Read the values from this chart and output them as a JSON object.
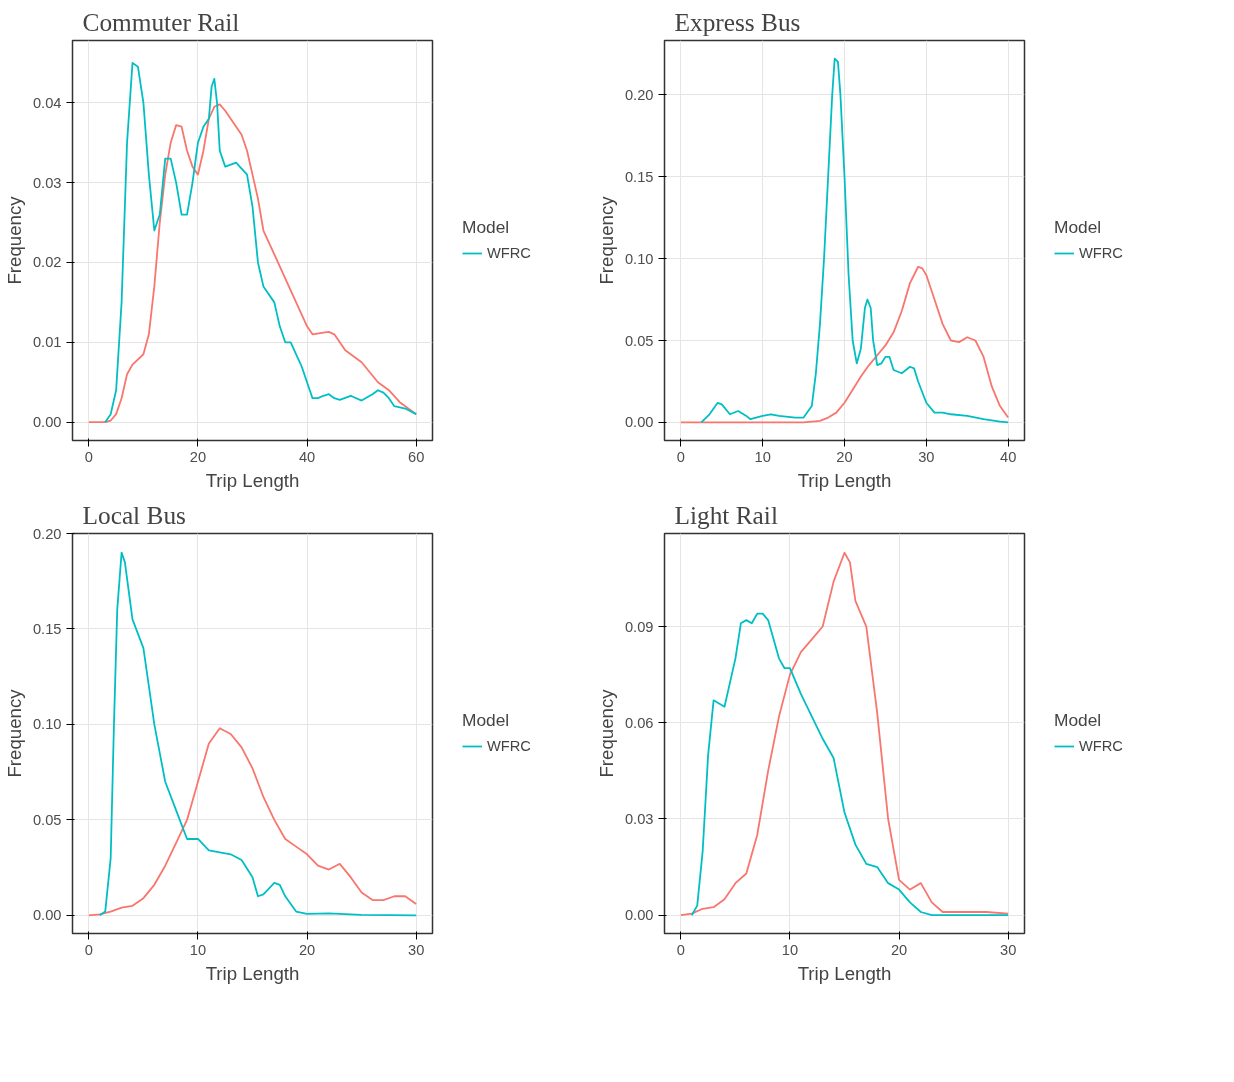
{
  "chart_data": [
    {
      "type": "line",
      "title": "Commuter Rail",
      "xlabel": "Trip Length",
      "ylabel": "Frequency",
      "legend_title": "Model",
      "legend": "right",
      "grid": true,
      "xlim": [
        -3,
        63
      ],
      "xticks": [
        0,
        20,
        40,
        60
      ],
      "ylim": [
        -0.0023,
        0.0478
      ],
      "yticks": [
        {
          "value": 0,
          "label": "0.00"
        },
        {
          "value": 0.01,
          "label": "0.01"
        },
        {
          "value": 0.02,
          "label": "0.02"
        },
        {
          "value": 0.03,
          "label": "0.03"
        },
        {
          "value": 0.04,
          "label": "0.04"
        }
      ],
      "series": [
        {
          "color": "#f8766d",
          "x": [
            0,
            3,
            4,
            5,
            6,
            7,
            8,
            10,
            11,
            12,
            13,
            14,
            15,
            16,
            17,
            18,
            19,
            20,
            21,
            22,
            23,
            24,
            25,
            26,
            28,
            29,
            30,
            31,
            32,
            34,
            36,
            37,
            38,
            40,
            41,
            43,
            44,
            45,
            47,
            50,
            53,
            55,
            57,
            60
          ],
          "values": [
            0,
            0,
            0.0002,
            0.001,
            0.003,
            0.006,
            0.0072,
            0.0085,
            0.011,
            0.017,
            0.025,
            0.031,
            0.035,
            0.0372,
            0.037,
            0.034,
            0.032,
            0.031,
            0.034,
            0.038,
            0.0395,
            0.0398,
            0.039,
            0.038,
            0.036,
            0.034,
            0.031,
            0.028,
            0.024,
            0.021,
            0.018,
            0.0165,
            0.015,
            0.012,
            0.011,
            0.0112,
            0.0113,
            0.011,
            0.009,
            0.0075,
            0.005,
            0.004,
            0.0025,
            0.001
          ]
        },
        {
          "name": "WFRC",
          "color": "#00bfc4",
          "x": [
            3,
            4,
            5,
            6,
            7,
            8,
            9,
            10,
            11,
            12,
            13,
            14,
            15,
            16,
            17,
            18,
            19,
            20,
            21,
            22,
            22.5,
            23,
            23.5,
            24,
            25,
            27,
            29,
            30,
            31,
            32,
            34,
            35,
            36,
            37,
            38,
            39,
            40,
            41,
            42,
            43,
            44,
            45,
            46,
            48,
            50,
            52,
            53,
            54,
            55,
            56,
            58,
            60
          ],
          "values": [
            0,
            0.001,
            0.004,
            0.015,
            0.035,
            0.045,
            0.0445,
            0.04,
            0.031,
            0.024,
            0.026,
            0.033,
            0.033,
            0.03,
            0.026,
            0.026,
            0.03,
            0.035,
            0.037,
            0.038,
            0.042,
            0.043,
            0.04,
            0.034,
            0.032,
            0.0325,
            0.031,
            0.027,
            0.02,
            0.017,
            0.015,
            0.012,
            0.01,
            0.01,
            0.0085,
            0.007,
            0.005,
            0.003,
            0.003,
            0.0033,
            0.0035,
            0.003,
            0.0028,
            0.0033,
            0.0027,
            0.0035,
            0.004,
            0.0037,
            0.003,
            0.002,
            0.0017,
            0.001
          ]
        }
      ]
    },
    {
      "type": "line",
      "title": "Express Bus",
      "xlabel": "Trip Length",
      "ylabel": "Frequency",
      "legend_title": "Model",
      "legend": "right",
      "grid": true,
      "xlim": [
        -2,
        42
      ],
      "xticks": [
        0,
        10,
        20,
        30,
        40
      ],
      "ylim": [
        -0.011,
        0.233
      ],
      "yticks": [
        {
          "value": 0,
          "label": "0.00"
        },
        {
          "value": 0.05,
          "label": "0.05"
        },
        {
          "value": 0.1,
          "label": "0.10"
        },
        {
          "value": 0.15,
          "label": "0.15"
        },
        {
          "value": 0.2,
          "label": "0.20"
        }
      ],
      "series": [
        {
          "color": "#f8766d",
          "x": [
            0,
            15,
            17,
            18,
            19,
            20,
            21,
            22,
            23,
            24,
            25,
            26,
            27,
            28,
            29,
            29.5,
            30,
            31,
            32,
            33,
            34,
            35,
            36,
            37,
            38,
            39,
            40
          ],
          "values": [
            0,
            0,
            0.001,
            0.003,
            0.006,
            0.012,
            0.02,
            0.028,
            0.035,
            0.041,
            0.047,
            0.055,
            0.068,
            0.085,
            0.095,
            0.094,
            0.09,
            0.075,
            0.06,
            0.05,
            0.049,
            0.052,
            0.05,
            0.04,
            0.022,
            0.01,
            0.003
          ]
        },
        {
          "name": "WFRC",
          "color": "#00bfc4",
          "x": [
            2.5,
            3.5,
            4.5,
            5,
            6,
            7,
            8,
            8.5,
            10,
            11,
            12,
            14,
            15,
            16,
            16.5,
            17,
            17.5,
            18,
            18.5,
            18.8,
            19.2,
            19.5,
            20,
            20.5,
            21,
            21.5,
            22,
            22.5,
            22.8,
            23.2,
            23.5,
            24,
            24.5,
            25,
            25.5,
            26,
            27,
            28,
            28.5,
            29,
            30,
            31,
            32,
            33,
            35,
            37,
            39,
            40
          ],
          "values": [
            0,
            0.005,
            0.012,
            0.011,
            0.005,
            0.007,
            0.004,
            0.002,
            0.004,
            0.005,
            0.004,
            0.003,
            0.003,
            0.01,
            0.03,
            0.06,
            0.1,
            0.15,
            0.2,
            0.222,
            0.22,
            0.2,
            0.15,
            0.09,
            0.05,
            0.036,
            0.045,
            0.07,
            0.075,
            0.07,
            0.05,
            0.035,
            0.036,
            0.04,
            0.04,
            0.032,
            0.03,
            0.034,
            0.033,
            0.025,
            0.012,
            0.006,
            0.006,
            0.005,
            0.004,
            0.002,
            0.0005,
            0
          ]
        }
      ]
    },
    {
      "type": "line",
      "title": "Local Bus",
      "xlabel": "Trip Length",
      "ylabel": "Frequency",
      "legend_title": "Model",
      "legend": "right",
      "grid": true,
      "xlim": [
        -1.5,
        31.5
      ],
      "xticks": [
        0,
        10,
        20,
        30
      ],
      "ylim": [
        -0.0095,
        0.2
      ],
      "yticks": [
        {
          "value": 0,
          "label": "0.00"
        },
        {
          "value": 0.05,
          "label": "0.05"
        },
        {
          "value": 0.1,
          "label": "0.10"
        },
        {
          "value": 0.15,
          "label": "0.15"
        },
        {
          "value": 0.2,
          "label": "0.20"
        }
      ],
      "series": [
        {
          "color": "#f8766d",
          "x": [
            0,
            1,
            2,
            3,
            4,
            5,
            6,
            7,
            8,
            9,
            10,
            11,
            12,
            13,
            14,
            15,
            16,
            17,
            18,
            19,
            20,
            21,
            22,
            23,
            24,
            25,
            26,
            27,
            28,
            29,
            30
          ],
          "values": [
            0,
            0.0005,
            0.002,
            0.004,
            0.005,
            0.009,
            0.016,
            0.026,
            0.038,
            0.05,
            0.07,
            0.09,
            0.098,
            0.095,
            0.088,
            0.077,
            0.062,
            0.05,
            0.04,
            0.036,
            0.032,
            0.026,
            0.024,
            0.027,
            0.02,
            0.012,
            0.008,
            0.008,
            0.01,
            0.01,
            0.006
          ]
        },
        {
          "name": "WFRC",
          "color": "#00bfc4",
          "x": [
            1,
            1.5,
            2,
            2.3,
            2.6,
            3,
            3.3,
            4,
            5,
            5.5,
            6,
            7,
            8,
            9,
            10,
            11,
            12,
            13,
            14,
            15,
            15.5,
            16,
            17,
            17.5,
            18,
            19,
            20,
            22,
            25,
            30
          ],
          "values": [
            0,
            0.002,
            0.03,
            0.1,
            0.16,
            0.19,
            0.185,
            0.155,
            0.14,
            0.12,
            0.1,
            0.07,
            0.055,
            0.04,
            0.04,
            0.034,
            0.033,
            0.032,
            0.029,
            0.02,
            0.01,
            0.011,
            0.017,
            0.016,
            0.01,
            0.002,
            0.0008,
            0.001,
            0.0003,
            0
          ]
        }
      ]
    },
    {
      "type": "line",
      "title": "Light Rail",
      "xlabel": "Trip Length",
      "ylabel": "Frequency",
      "legend_title": "Model",
      "legend": "right",
      "grid": true,
      "xlim": [
        -1.5,
        31.5
      ],
      "xticks": [
        0,
        10,
        20,
        30
      ],
      "ylim": [
        -0.0057,
        0.119
      ],
      "yticks": [
        {
          "value": 0,
          "label": "0.00"
        },
        {
          "value": 0.03,
          "label": "0.03"
        },
        {
          "value": 0.06,
          "label": "0.06"
        },
        {
          "value": 0.09,
          "label": "0.09"
        }
      ],
      "series": [
        {
          "color": "#f8766d",
          "x": [
            0,
            1,
            2,
            3,
            4,
            5,
            6,
            7,
            8,
            9,
            10,
            11,
            12,
            13,
            14,
            15,
            15.5,
            16,
            17,
            18,
            19,
            20,
            21,
            22,
            23,
            24,
            28,
            30
          ],
          "values": [
            0,
            0.0005,
            0.002,
            0.0025,
            0.005,
            0.01,
            0.013,
            0.025,
            0.045,
            0.062,
            0.075,
            0.082,
            0.086,
            0.09,
            0.104,
            0.113,
            0.11,
            0.098,
            0.09,
            0.063,
            0.03,
            0.011,
            0.008,
            0.01,
            0.004,
            0.001,
            0.001,
            0.0005
          ]
        },
        {
          "name": "WFRC",
          "color": "#00bfc4",
          "x": [
            1,
            1.5,
            2,
            2.5,
            3,
            3.5,
            4,
            5,
            5.5,
            6,
            6.5,
            7,
            7.5,
            8,
            9,
            9.5,
            10,
            11,
            12,
            13,
            14,
            15,
            16,
            17,
            18,
            19,
            20,
            21,
            22,
            23,
            30
          ],
          "values": [
            0,
            0.003,
            0.02,
            0.05,
            0.067,
            0.066,
            0.065,
            0.08,
            0.091,
            0.092,
            0.091,
            0.094,
            0.094,
            0.092,
            0.08,
            0.077,
            0.077,
            0.069,
            0.062,
            0.055,
            0.049,
            0.032,
            0.022,
            0.016,
            0.015,
            0.01,
            0.008,
            0.004,
            0.001,
            0,
            0
          ]
        }
      ]
    }
  ]
}
